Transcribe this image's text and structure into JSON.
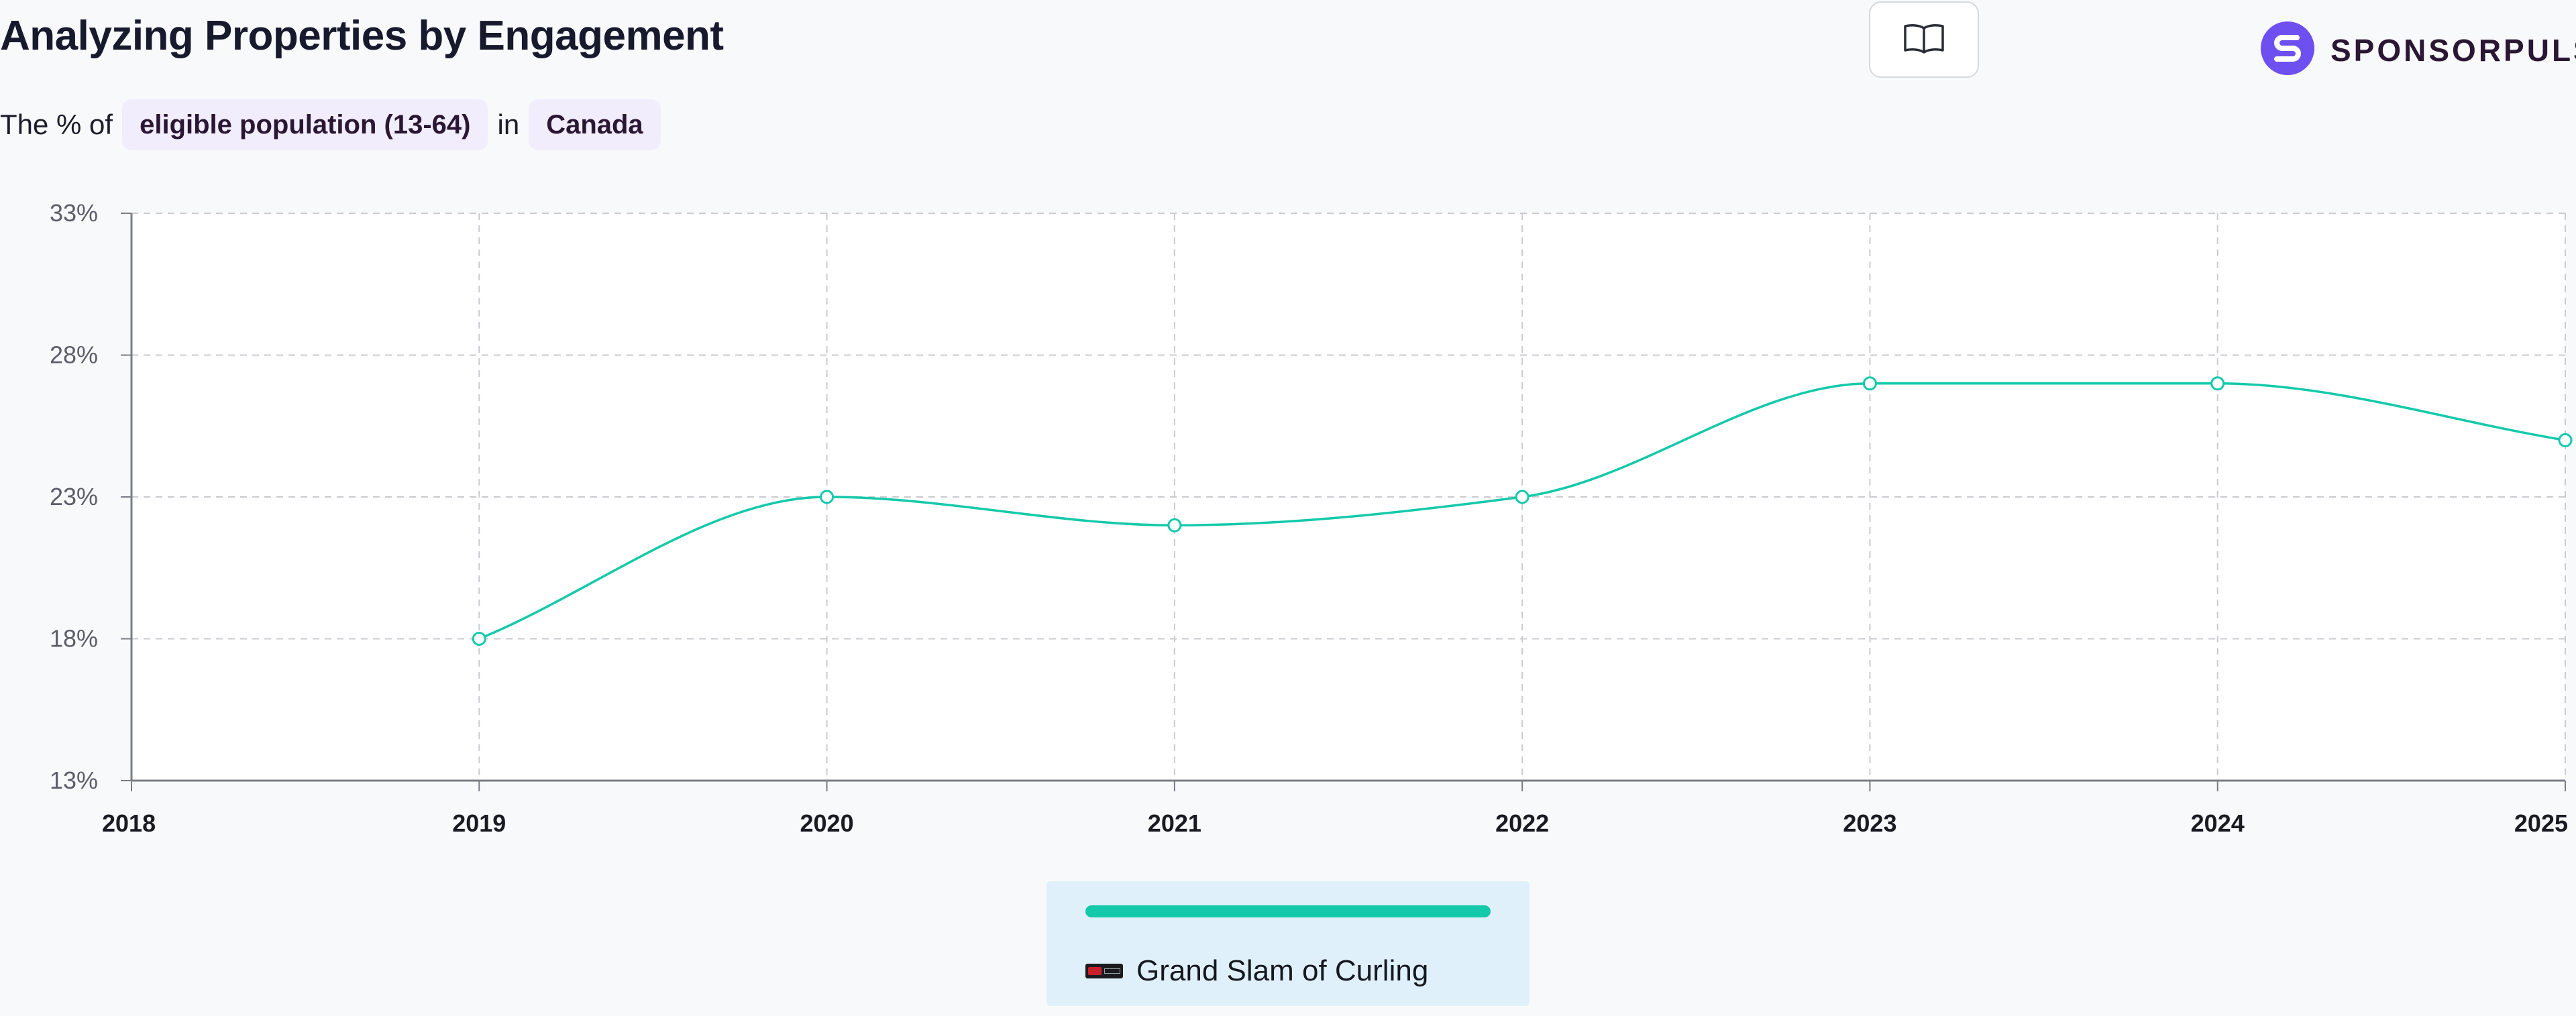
{
  "header": {
    "title": "Analyzing Properties by Engagement",
    "subtitle_prefix": "The % of",
    "metric": "eligible population (13-64)",
    "subtitle_join": "in",
    "region": "Canada",
    "brand": "SPONSORPULSE",
    "brand_icon": "sponsorpulse-logo-icon",
    "guide_icon": "open-book-icon"
  },
  "colors": {
    "series": "#14c9aa",
    "accent": "#6e4ff0",
    "legend_bg": "#e0f0fb"
  },
  "chart_data": {
    "type": "line",
    "x": [
      "2018",
      "2019",
      "2020",
      "2021",
      "2022",
      "2023",
      "2024",
      "2025"
    ],
    "series": [
      {
        "name": "Grand Slam of Curling",
        "values": [
          null,
          18,
          23,
          22,
          23,
          27,
          27,
          25
        ]
      }
    ],
    "ylim": [
      13,
      33
    ],
    "yticks": [
      "13%",
      "18%",
      "23%",
      "28%",
      "33%"
    ],
    "grid": true,
    "legend_position": "bottom-center"
  },
  "legend": {
    "items": [
      {
        "label": "Grand Slam of Curling",
        "icon": "grand-slam-of-curling-logo-icon"
      }
    ]
  }
}
